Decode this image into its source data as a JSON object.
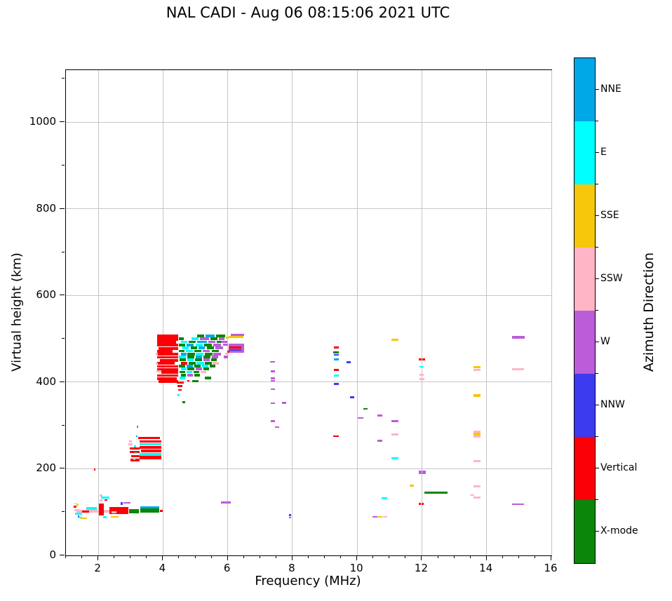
{
  "chart_data": {
    "type": "scatter",
    "title": "NAL CADI - Aug 06 08:15:06 2021 UTC",
    "xlabel": "Frequency (MHz)",
    "ylabel": "Virtual height (km)",
    "colorbar_label": "Azimuth Direction",
    "xlim": [
      1,
      16
    ],
    "ylim": [
      0,
      1120
    ],
    "xticks": [
      2,
      4,
      6,
      8,
      10,
      12,
      14,
      16
    ],
    "yticks": [
      0,
      200,
      400,
      600,
      800,
      1000
    ],
    "x_minor_step": 0.5,
    "y_minor_step": 100,
    "grid": true,
    "legend_position": "right-colorbar",
    "directions": [
      {
        "name": "NNE",
        "color": "#00A8E8"
      },
      {
        "name": "E",
        "color": "#00FFFF"
      },
      {
        "name": "SSE",
        "color": "#F6C70A"
      },
      {
        "name": "SSW",
        "color": "#FFB5C5"
      },
      {
        "name": "W",
        "color": "#BB5CD8"
      },
      {
        "name": "NNW",
        "color": "#3D3BEF"
      },
      {
        "name": "Vertical",
        "color": "#FB0007"
      },
      {
        "name": "X-mode",
        "color": "#0B860B"
      }
    ],
    "points_format": [
      "freq_start_MHz",
      "freq_end_MHz",
      "height_km",
      "thickness_km",
      "direction"
    ],
    "points": [
      [
        1.33,
        1.38,
        117,
        5,
        "SSE"
      ],
      [
        1.24,
        1.33,
        113,
        5,
        "Vertical"
      ],
      [
        1.26,
        1.31,
        120,
        4,
        "SSW"
      ],
      [
        1.26,
        1.42,
        104,
        5,
        "SSW"
      ],
      [
        1.28,
        1.5,
        97,
        5,
        "E"
      ],
      [
        1.37,
        1.5,
        87,
        4,
        "E"
      ],
      [
        1.46,
        1.66,
        86,
        4,
        "SSE"
      ],
      [
        1.36,
        1.41,
        91,
        4,
        "NNW"
      ],
      [
        1.33,
        2.8,
        102,
        5,
        "SSW"
      ],
      [
        1.5,
        1.72,
        101,
        5,
        "Vertical"
      ],
      [
        1.62,
        1.95,
        108,
        6,
        "E"
      ],
      [
        2.02,
        2.17,
        106,
        26,
        "Vertical"
      ],
      [
        2.04,
        2.12,
        138,
        5,
        "SSW"
      ],
      [
        2.04,
        2.12,
        127,
        5,
        "SSW"
      ],
      [
        2.08,
        2.35,
        134,
        5,
        "E"
      ],
      [
        2.2,
        2.27,
        128,
        4,
        "Vertical"
      ],
      [
        1.87,
        1.92,
        199,
        5,
        "Vertical"
      ],
      [
        2.34,
        2.92,
        104,
        16,
        "Vertical"
      ],
      [
        2.4,
        2.56,
        99,
        5,
        "SSW"
      ],
      [
        2.15,
        2.26,
        88,
        4,
        "E"
      ],
      [
        2.38,
        2.62,
        89,
        4,
        "SSE"
      ],
      [
        2.68,
        2.76,
        120,
        6,
        "NNW"
      ],
      [
        2.77,
        3.0,
        121,
        4,
        "W"
      ],
      [
        2.95,
        3.26,
        102,
        9,
        "X-mode"
      ],
      [
        3.3,
        3.88,
        103,
        10,
        "X-mode"
      ],
      [
        3.3,
        3.88,
        111,
        5,
        "NNE"
      ],
      [
        3.9,
        3.99,
        103,
        5,
        "Vertical"
      ],
      [
        3.19,
        3.23,
        297,
        4,
        "NNE"
      ],
      [
        3.17,
        3.22,
        275,
        4,
        "NNE"
      ],
      [
        3.23,
        3.91,
        271,
        4,
        "Vertical"
      ],
      [
        3.28,
        3.95,
        263,
        6,
        "Vertical"
      ],
      [
        3.28,
        3.95,
        256,
        5,
        "E"
      ],
      [
        3.28,
        3.95,
        249,
        7,
        "Vertical"
      ],
      [
        3.32,
        3.95,
        241,
        6,
        "Vertical"
      ],
      [
        3.28,
        3.95,
        233,
        5,
        "E"
      ],
      [
        3.28,
        3.95,
        226,
        7,
        "Vertical"
      ],
      [
        2.97,
        3.28,
        247,
        5,
        "Vertical"
      ],
      [
        2.97,
        3.28,
        239,
        5,
        "Vertical"
      ],
      [
        3.02,
        3.28,
        229,
        5,
        "Vertical"
      ],
      [
        2.99,
        3.28,
        220,
        6,
        "Vertical"
      ],
      [
        2.92,
        3.06,
        257,
        5,
        "SSW"
      ],
      [
        2.96,
        3.03,
        263,
        4,
        "SSW"
      ],
      [
        3.1,
        3.17,
        252,
        4,
        "E"
      ],
      [
        3.12,
        3.19,
        236,
        4,
        "E"
      ],
      [
        3.09,
        3.15,
        222,
        4,
        "E"
      ],
      [
        3.82,
        4.46,
        506,
        7,
        "Vertical"
      ],
      [
        3.82,
        4.46,
        499,
        6,
        "Vertical"
      ],
      [
        3.82,
        4.4,
        492,
        6,
        "Vertical"
      ],
      [
        3.82,
        4.46,
        485,
        6,
        "Vertical"
      ],
      [
        3.86,
        4.46,
        478,
        6,
        "Vertical"
      ],
      [
        3.82,
        4.3,
        471,
        6,
        "Vertical"
      ],
      [
        3.82,
        4.46,
        464,
        6,
        "Vertical"
      ],
      [
        3.82,
        4.46,
        457,
        6,
        "Vertical"
      ],
      [
        3.9,
        4.46,
        450,
        6,
        "Vertical"
      ],
      [
        3.82,
        4.35,
        443,
        6,
        "Vertical"
      ],
      [
        3.82,
        4.46,
        436,
        6,
        "Vertical"
      ],
      [
        3.82,
        4.46,
        429,
        6,
        "Vertical"
      ],
      [
        3.95,
        4.46,
        422,
        6,
        "Vertical"
      ],
      [
        3.82,
        4.46,
        415,
        6,
        "Vertical"
      ],
      [
        3.82,
        4.42,
        408,
        6,
        "Vertical"
      ],
      [
        3.86,
        4.46,
        401,
        6,
        "Vertical"
      ],
      [
        3.77,
        3.85,
        466,
        5,
        "SSW"
      ],
      [
        3.77,
        3.85,
        442,
        5,
        "SSW"
      ],
      [
        3.8,
        3.95,
        425,
        5,
        "SSW"
      ],
      [
        5.06,
        5.27,
        507,
        6,
        "X-mode"
      ],
      [
        5.31,
        5.6,
        507,
        6,
        "NNE"
      ],
      [
        5.64,
        5.91,
        507,
        6,
        "X-mode"
      ],
      [
        4.5,
        4.64,
        500,
        6,
        "X-mode"
      ],
      [
        4.88,
        5.1,
        500,
        6,
        "E"
      ],
      [
        5.15,
        5.42,
        500,
        6,
        "W"
      ],
      [
        5.47,
        5.68,
        500,
        6,
        "X-mode"
      ],
      [
        5.72,
        5.9,
        500,
        6,
        "W"
      ],
      [
        4.55,
        4.75,
        493,
        6,
        "E"
      ],
      [
        4.8,
        5.0,
        493,
        6,
        "X-mode"
      ],
      [
        5.05,
        5.35,
        493,
        6,
        "NNE"
      ],
      [
        5.4,
        5.62,
        493,
        6,
        "W"
      ],
      [
        5.66,
        5.88,
        493,
        6,
        "X-mode"
      ],
      [
        4.5,
        4.68,
        486,
        6,
        "X-mode"
      ],
      [
        4.72,
        4.95,
        486,
        6,
        "NNE"
      ],
      [
        5.0,
        5.22,
        486,
        6,
        "E"
      ],
      [
        5.26,
        5.5,
        486,
        6,
        "X-mode"
      ],
      [
        5.55,
        5.8,
        486,
        6,
        "W"
      ],
      [
        4.6,
        4.8,
        479,
        6,
        "E"
      ],
      [
        4.85,
        5.05,
        479,
        6,
        "X-mode"
      ],
      [
        5.1,
        5.3,
        479,
        6,
        "NNE"
      ],
      [
        5.35,
        5.58,
        479,
        6,
        "X-mode"
      ],
      [
        5.62,
        5.85,
        479,
        6,
        "W"
      ],
      [
        4.5,
        4.66,
        472,
        6,
        "X-mode"
      ],
      [
        4.7,
        4.92,
        472,
        6,
        "E"
      ],
      [
        4.96,
        5.18,
        472,
        6,
        "X-mode"
      ],
      [
        5.22,
        5.45,
        472,
        6,
        "W"
      ],
      [
        5.5,
        5.72,
        472,
        6,
        "X-mode"
      ],
      [
        4.55,
        4.72,
        465,
        6,
        "NNE"
      ],
      [
        4.76,
        4.98,
        465,
        6,
        "X-mode"
      ],
      [
        5.02,
        5.25,
        465,
        6,
        "E"
      ],
      [
        5.3,
        5.52,
        465,
        6,
        "X-mode"
      ],
      [
        5.56,
        5.78,
        465,
        6,
        "W"
      ],
      [
        4.5,
        4.7,
        458,
        6,
        "E"
      ],
      [
        4.74,
        4.96,
        458,
        6,
        "X-mode"
      ],
      [
        5.0,
        5.2,
        458,
        6,
        "NNE"
      ],
      [
        5.24,
        5.46,
        458,
        6,
        "X-mode"
      ],
      [
        5.5,
        5.7,
        458,
        6,
        "W"
      ],
      [
        4.52,
        4.7,
        451,
        6,
        "X-mode"
      ],
      [
        4.74,
        4.94,
        451,
        6,
        "E"
      ],
      [
        4.98,
        5.2,
        451,
        6,
        "X-mode"
      ],
      [
        5.24,
        5.44,
        451,
        6,
        "W"
      ],
      [
        5.48,
        5.66,
        451,
        6,
        "X-mode"
      ],
      [
        4.55,
        4.75,
        444,
        6,
        "Vertical"
      ],
      [
        4.79,
        5.0,
        444,
        6,
        "X-mode"
      ],
      [
        5.04,
        5.26,
        444,
        6,
        "E"
      ],
      [
        5.3,
        5.5,
        444,
        6,
        "X-mode"
      ],
      [
        5.54,
        5.72,
        444,
        6,
        "SSW"
      ],
      [
        4.5,
        4.68,
        437,
        6,
        "X-mode"
      ],
      [
        4.72,
        4.92,
        437,
        6,
        "NNE"
      ],
      [
        4.96,
        5.16,
        437,
        6,
        "X-mode"
      ],
      [
        5.2,
        5.4,
        437,
        6,
        "E"
      ],
      [
        5.44,
        5.62,
        437,
        6,
        "X-mode"
      ],
      [
        4.55,
        4.72,
        430,
        6,
        "E"
      ],
      [
        4.76,
        4.96,
        430,
        6,
        "X-mode"
      ],
      [
        5.0,
        5.2,
        430,
        6,
        "W"
      ],
      [
        5.24,
        5.42,
        430,
        6,
        "X-mode"
      ],
      [
        4.52,
        4.68,
        423,
        6,
        "X-mode"
      ],
      [
        4.72,
        4.9,
        423,
        6,
        "E"
      ],
      [
        4.94,
        5.12,
        423,
        6,
        "X-mode"
      ],
      [
        5.16,
        5.34,
        423,
        6,
        "SSW"
      ],
      [
        4.55,
        4.7,
        416,
        6,
        "X-mode"
      ],
      [
        4.74,
        4.92,
        416,
        6,
        "W"
      ],
      [
        4.96,
        5.14,
        416,
        6,
        "X-mode"
      ],
      [
        4.52,
        4.68,
        409,
        6,
        "E"
      ],
      [
        5.3,
        5.48,
        409,
        6,
        "X-mode"
      ],
      [
        4.9,
        5.1,
        402,
        6,
        "X-mode"
      ],
      [
        5.8,
        5.98,
        493,
        5,
        "W"
      ],
      [
        5.85,
        6.0,
        486,
        5,
        "W"
      ],
      [
        5.88,
        6.0,
        458,
        5,
        "W"
      ],
      [
        5.92,
        6.02,
        466,
        5,
        "SSW"
      ],
      [
        5.95,
        6.02,
        503,
        5,
        "SSE"
      ],
      [
        6.1,
        6.5,
        509,
        4,
        "W"
      ],
      [
        6.03,
        6.49,
        504,
        5,
        "SSE"
      ],
      [
        6.03,
        6.5,
        478,
        20,
        "W"
      ],
      [
        6.03,
        6.42,
        480,
        4,
        "Vertical"
      ],
      [
        6.03,
        6.42,
        474,
        4,
        "NNW"
      ],
      [
        5.98,
        6.04,
        470,
        6,
        "Vertical"
      ],
      [
        4.42,
        4.64,
        399,
        5,
        "Vertical"
      ],
      [
        4.44,
        4.6,
        391,
        5,
        "Vertical"
      ],
      [
        4.47,
        4.57,
        382,
        4,
        "Vertical"
      ],
      [
        4.45,
        4.52,
        370,
        4,
        "E"
      ],
      [
        4.6,
        4.68,
        354,
        4,
        "X-mode"
      ],
      [
        4.76,
        4.81,
        403,
        4,
        "Vertical"
      ],
      [
        5.79,
        6.1,
        122,
        5,
        "W"
      ],
      [
        7.3,
        7.46,
        447,
        4,
        "W"
      ],
      [
        7.32,
        7.46,
        425,
        4,
        "W"
      ],
      [
        7.32,
        7.46,
        409,
        4,
        "W"
      ],
      [
        7.32,
        7.46,
        403,
        4,
        "W"
      ],
      [
        7.32,
        7.46,
        384,
        4,
        "W"
      ],
      [
        7.32,
        7.46,
        351,
        4,
        "W"
      ],
      [
        7.68,
        7.8,
        352,
        4,
        "W"
      ],
      [
        7.34,
        7.46,
        310,
        4,
        "W"
      ],
      [
        7.46,
        7.58,
        296,
        4,
        "W"
      ],
      [
        7.9,
        7.96,
        93,
        4,
        "NNW"
      ],
      [
        7.9,
        7.96,
        88,
        3,
        "W"
      ],
      [
        9.28,
        9.44,
        480,
        4,
        "Vertical"
      ],
      [
        9.26,
        9.44,
        468,
        5,
        "X-mode"
      ],
      [
        9.28,
        9.44,
        463,
        3,
        "NNW"
      ],
      [
        9.28,
        9.44,
        452,
        4,
        "NNE"
      ],
      [
        9.67,
        9.79,
        446,
        4,
        "NNW"
      ],
      [
        9.28,
        9.44,
        428,
        4,
        "Vertical"
      ],
      [
        9.28,
        9.44,
        415,
        4,
        "E"
      ],
      [
        9.28,
        9.44,
        396,
        4,
        "NNW"
      ],
      [
        9.78,
        9.9,
        365,
        4,
        "NNW"
      ],
      [
        9.26,
        9.43,
        275,
        4,
        "Vertical"
      ],
      [
        10.19,
        10.33,
        338,
        4,
        "X-mode"
      ],
      [
        10.02,
        10.19,
        317,
        4,
        "W"
      ],
      [
        10.63,
        10.78,
        323,
        4,
        "W"
      ],
      [
        10.62,
        10.77,
        265,
        4,
        "W"
      ],
      [
        10.76,
        10.93,
        132,
        4,
        "E"
      ],
      [
        10.47,
        10.62,
        89,
        4,
        "W"
      ],
      [
        10.63,
        10.77,
        89,
        4,
        "SSE"
      ],
      [
        10.79,
        10.92,
        89,
        4,
        "SSW"
      ],
      [
        11.06,
        11.28,
        498,
        5,
        "SSE"
      ],
      [
        11.06,
        11.28,
        310,
        4,
        "W"
      ],
      [
        11.06,
        11.28,
        279,
        4,
        "SSW"
      ],
      [
        11.06,
        11.28,
        224,
        4,
        "E"
      ],
      [
        11.62,
        11.76,
        161,
        4,
        "SSE"
      ],
      [
        11.9,
        12.0,
        452,
        4,
        "Vertical"
      ],
      [
        12.02,
        12.1,
        452,
        4,
        "Vertical"
      ],
      [
        11.92,
        12.06,
        435,
        4,
        "E"
      ],
      [
        11.92,
        12.06,
        417,
        4,
        "SSW"
      ],
      [
        11.93,
        12.07,
        407,
        4,
        "SSW"
      ],
      [
        11.9,
        12.0,
        192,
        7,
        "W"
      ],
      [
        12.02,
        12.11,
        192,
        7,
        "W"
      ],
      [
        11.9,
        11.96,
        119,
        4,
        "Vertical"
      ],
      [
        12.0,
        12.05,
        119,
        4,
        "Vertical"
      ],
      [
        12.08,
        12.8,
        145,
        5,
        "X-mode"
      ],
      [
        13.6,
        13.82,
        434,
        5,
        "SSE"
      ],
      [
        13.6,
        13.82,
        428,
        5,
        "SSW"
      ],
      [
        13.6,
        13.82,
        369,
        5,
        "SSE"
      ],
      [
        13.6,
        13.82,
        286,
        5,
        "SSW"
      ],
      [
        13.6,
        13.82,
        280,
        5,
        "SSE"
      ],
      [
        13.6,
        13.82,
        274,
        5,
        "SSW"
      ],
      [
        13.6,
        13.82,
        218,
        5,
        "SSW"
      ],
      [
        13.6,
        13.82,
        160,
        5,
        "SSW"
      ],
      [
        13.49,
        13.62,
        139,
        4,
        "SSW"
      ],
      [
        13.6,
        13.82,
        134,
        5,
        "SSW"
      ],
      [
        14.79,
        15.18,
        503,
        6,
        "W"
      ],
      [
        14.79,
        15.16,
        430,
        4,
        "SSW"
      ],
      [
        14.79,
        15.16,
        118,
        4,
        "W"
      ]
    ]
  }
}
